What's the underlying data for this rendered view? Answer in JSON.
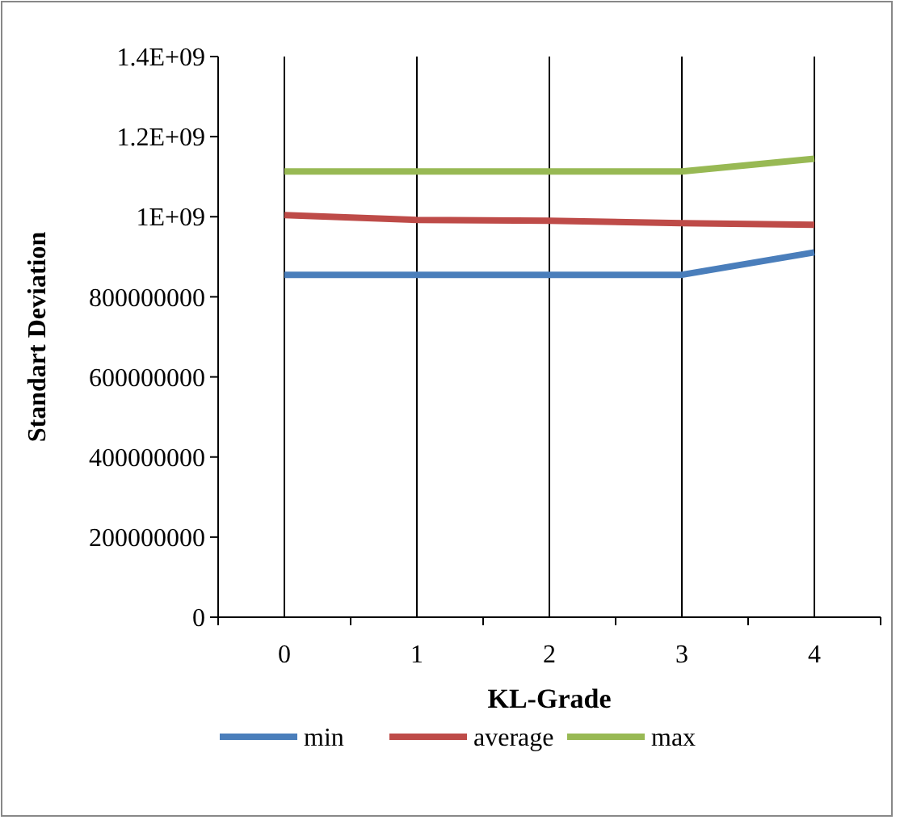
{
  "chart_data": {
    "type": "line",
    "xlabel": "KL-Grade",
    "ylabel": "Standart Deviation",
    "categories": [
      "0",
      "1",
      "2",
      "3",
      "4"
    ],
    "series": [
      {
        "name": "min",
        "color": "#4a7ebb",
        "values": [
          855000000,
          855000000,
          855000000,
          855000000,
          911000000
        ]
      },
      {
        "name": "average",
        "color": "#be4b48",
        "values": [
          1004000000,
          992000000,
          990000000,
          984000000,
          980000000
        ]
      },
      {
        "name": "max",
        "color": "#98b954",
        "values": [
          1113000000,
          1113000000,
          1113000000,
          1113000000,
          1145000000
        ]
      }
    ],
    "ylim": [
      0,
      1400000000
    ],
    "yticks": [
      0,
      200000000,
      400000000,
      600000000,
      800000000,
      {
        "value": 1000000000,
        "label": "1E+09"
      },
      {
        "value": 1200000000,
        "label": "1.2E+09"
      },
      {
        "value": 1400000000,
        "label": "1.4E+09"
      }
    ],
    "grid": "x",
    "legend": "bottom",
    "marker": "none",
    "line_style": "solid"
  }
}
